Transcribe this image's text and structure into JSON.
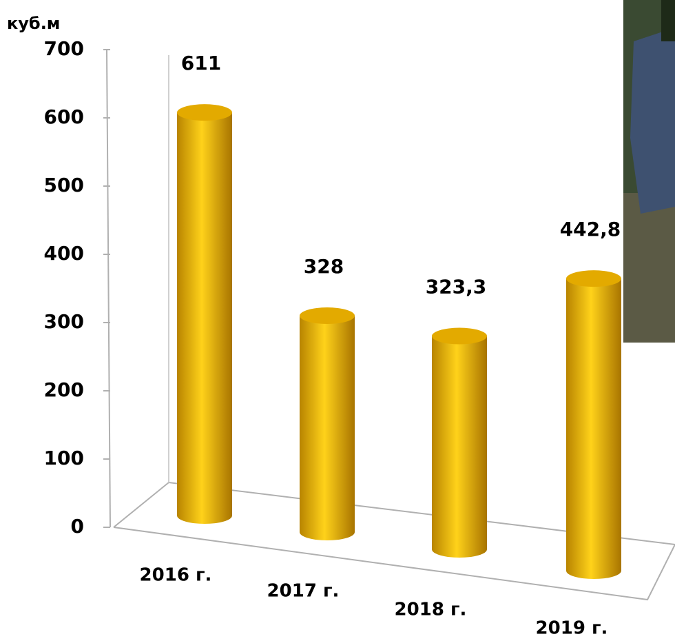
{
  "chart_data": {
    "type": "bar3d",
    "y_label": "куб.м",
    "categories": [
      "2016 г.",
      "2017 г.",
      "2018 г.",
      "2019 г."
    ],
    "values": [
      611,
      328,
      323.3,
      442.8
    ],
    "value_labels": [
      "611",
      "328",
      "323,3",
      "442,8"
    ],
    "color": "#f5c000",
    "ylim": [
      0,
      700
    ],
    "yticks": [
      0,
      100,
      200,
      300,
      400,
      500,
      600,
      700
    ],
    "grid": false
  }
}
